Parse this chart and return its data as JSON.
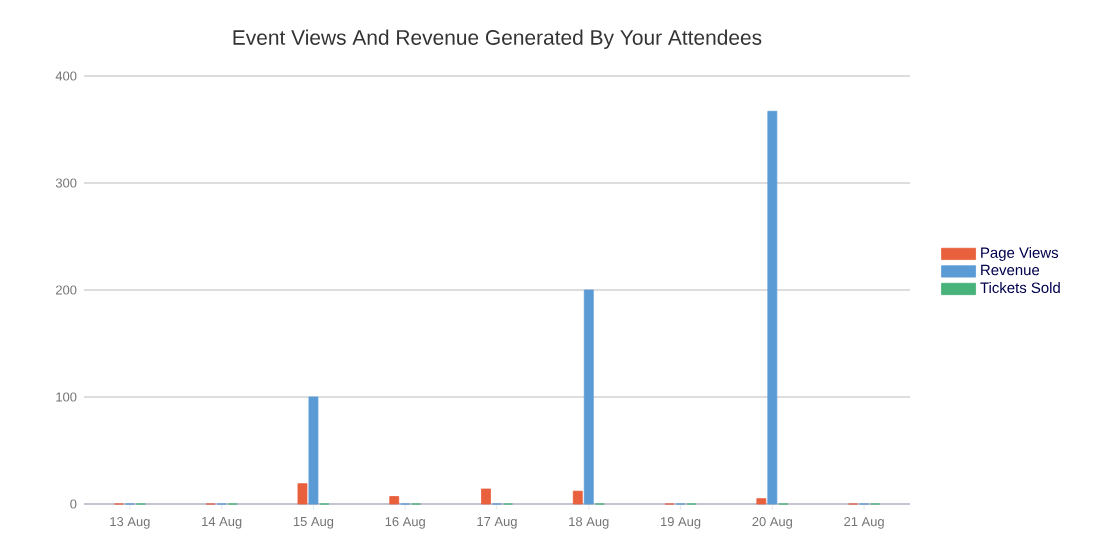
{
  "chart_data": {
    "type": "bar",
    "title": "Event Views And Revenue Generated By Your Attendees",
    "categories": [
      "13 Aug",
      "14 Aug",
      "15 Aug",
      "16 Aug",
      "17 Aug",
      "18 Aug",
      "19 Aug",
      "20 Aug",
      "21 Aug"
    ],
    "series": [
      {
        "name": "Page Views",
        "color": "#e9603d",
        "values": [
          0,
          0,
          19,
          7,
          14,
          12,
          0,
          5,
          0
        ]
      },
      {
        "name": "Revenue",
        "color": "#5b9bd5",
        "values": [
          0,
          0,
          100,
          0,
          0,
          200,
          0,
          367,
          0
        ]
      },
      {
        "name": "Tickets Sold",
        "color": "#47b27a",
        "values": [
          0,
          0,
          0,
          0,
          0,
          0,
          0,
          0,
          0
        ]
      }
    ],
    "ylim": [
      0,
      400
    ],
    "yticks": [
      0,
      100,
      200,
      300,
      400
    ],
    "grid": "y",
    "legend": "right"
  }
}
